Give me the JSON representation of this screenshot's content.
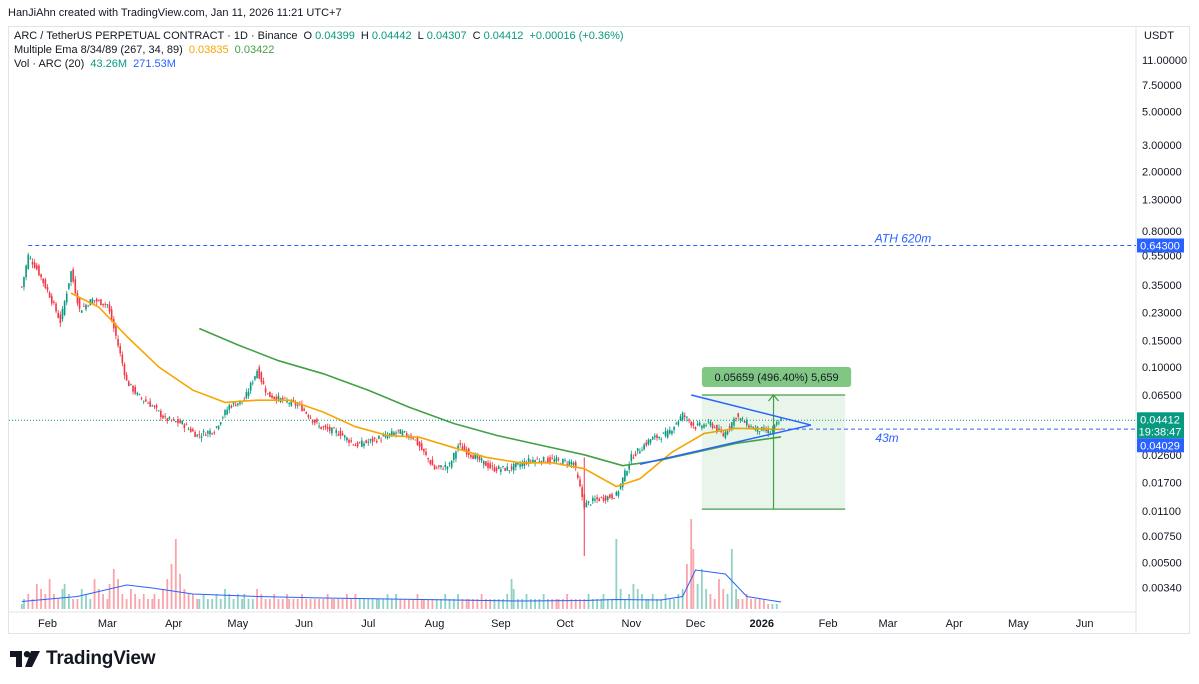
{
  "header": {
    "credit": "HanJiAhn created with TradingView.com, Jan 11, 2026 11:21 UTC+7"
  },
  "legend": {
    "symbol": "ARC / TetherUS PERPETUAL CONTRACT · 1D · Binance",
    "o_label": "O",
    "o": "0.04399",
    "h_label": "H",
    "h": "0.04442",
    "l_label": "L",
    "l": "0.04307",
    "c_label": "C",
    "c": "0.04412",
    "change": "+0.00016 (+0.36%)",
    "ema_label": "Multiple Ema 8/34/89 (267, 34, 89)",
    "ema_v1": "0.03835",
    "ema_v2": "0.03422",
    "vol_label": "Vol · ARC (20)",
    "vol_v1": "43.26M",
    "vol_v2": "271.53M"
  },
  "currency": "USDT",
  "footer": {
    "brand": "TradingView",
    "logo_icon": "tradingview-logo-icon"
  },
  "colors": {
    "up": "#089981",
    "down": "#f23645",
    "ema_fast": "#f7a600",
    "ema_slow": "#43a047",
    "triangle": "#2962ff",
    "measure": "#089981"
  },
  "chart_data": {
    "type": "candlestick",
    "scale": "log",
    "ylim": [
      0.0026,
      15
    ],
    "y_ticks": [
      "11.00000",
      "7.50000",
      "5.00000",
      "3.00000",
      "2.00000",
      "1.30000",
      "0.80000",
      "0.55000",
      "0.35000",
      "0.23000",
      "0.15000",
      "0.10000",
      "0.06500",
      "0.02600",
      "0.01700",
      "0.01100",
      "0.00750",
      "0.00500",
      "0.00340"
    ],
    "x_ticks": [
      "Feb",
      "Mar",
      "Apr",
      "May",
      "Jun",
      "Jul",
      "Aug",
      "Sep",
      "Oct",
      "Nov",
      "Dec",
      "2026",
      "Feb",
      "Mar",
      "Apr",
      "May",
      "Jun"
    ],
    "x_range": [
      "2025-01-14",
      "2026-06-25"
    ],
    "price_closes": [
      [
        "2025-01-20",
        0.34
      ],
      [
        "2025-01-23",
        0.55
      ],
      [
        "2025-01-27",
        0.45
      ],
      [
        "2025-02-02",
        0.3
      ],
      [
        "2025-02-07",
        0.2
      ],
      [
        "2025-02-12",
        0.43
      ],
      [
        "2025-02-16",
        0.24
      ],
      [
        "2025-02-22",
        0.28
      ],
      [
        "2025-03-01",
        0.26
      ],
      [
        "2025-03-05",
        0.16
      ],
      [
        "2025-03-10",
        0.08
      ],
      [
        "2025-03-15",
        0.065
      ],
      [
        "2025-03-22",
        0.055
      ],
      [
        "2025-03-28",
        0.045
      ],
      [
        "2025-04-05",
        0.042
      ],
      [
        "2025-04-12",
        0.035
      ],
      [
        "2025-04-20",
        0.038
      ],
      [
        "2025-04-27",
        0.055
      ],
      [
        "2025-05-04",
        0.06
      ],
      [
        "2025-05-10",
        0.095
      ],
      [
        "2025-05-15",
        0.065
      ],
      [
        "2025-05-22",
        0.06
      ],
      [
        "2025-05-30",
        0.055
      ],
      [
        "2025-06-08",
        0.04
      ],
      [
        "2025-06-18",
        0.036
      ],
      [
        "2025-06-25",
        0.03
      ],
      [
        "2025-07-05",
        0.033
      ],
      [
        "2025-07-15",
        0.037
      ],
      [
        "2025-07-22",
        0.034
      ],
      [
        "2025-08-01",
        0.021
      ],
      [
        "2025-08-08",
        0.022
      ],
      [
        "2025-08-12",
        0.03
      ],
      [
        "2025-08-20",
        0.025
      ],
      [
        "2025-08-28",
        0.021
      ],
      [
        "2025-09-05",
        0.021
      ],
      [
        "2025-09-15",
        0.024
      ],
      [
        "2025-09-25",
        0.024
      ],
      [
        "2025-10-05",
        0.023
      ],
      [
        "2025-10-10",
        0.012
      ],
      [
        "2025-10-15",
        0.013
      ],
      [
        "2025-10-25",
        0.014
      ],
      [
        "2025-11-01",
        0.025
      ],
      [
        "2025-11-10",
        0.033
      ],
      [
        "2025-11-18",
        0.036
      ],
      [
        "2025-11-25",
        0.048
      ],
      [
        "2025-12-01",
        0.04
      ],
      [
        "2025-12-08",
        0.042
      ],
      [
        "2025-12-14",
        0.035
      ],
      [
        "2025-12-20",
        0.047
      ],
      [
        "2025-12-28",
        0.039
      ],
      [
        "2026-01-05",
        0.037
      ],
      [
        "2026-01-10",
        0.04412
      ]
    ],
    "series": [
      {
        "name": "Multiple Ema 8/34/89 (267, 34, 89) 0.03835",
        "points": [
          [
            "2025-02-12",
            0.31
          ],
          [
            "2025-02-25",
            0.25
          ],
          [
            "2025-03-10",
            0.16
          ],
          [
            "2025-03-25",
            0.1
          ],
          [
            "2025-04-10",
            0.07
          ],
          [
            "2025-04-25",
            0.058
          ],
          [
            "2025-05-10",
            0.06
          ],
          [
            "2025-05-25",
            0.06
          ],
          [
            "2025-06-10",
            0.05
          ],
          [
            "2025-06-25",
            0.04
          ],
          [
            "2025-07-10",
            0.035
          ],
          [
            "2025-07-25",
            0.034
          ],
          [
            "2025-08-10",
            0.029
          ],
          [
            "2025-08-25",
            0.025
          ],
          [
            "2025-09-10",
            0.023
          ],
          [
            "2025-09-25",
            0.023
          ],
          [
            "2025-10-10",
            0.021
          ],
          [
            "2025-10-25",
            0.016
          ],
          [
            "2025-11-05",
            0.018
          ],
          [
            "2025-11-20",
            0.027
          ],
          [
            "2025-12-05",
            0.036
          ],
          [
            "2025-12-20",
            0.039
          ],
          [
            "2026-01-10",
            0.03835
          ]
        ]
      },
      {
        "name": "0.03422",
        "points": [
          [
            "2025-04-13",
            0.18
          ],
          [
            "2025-05-01",
            0.14
          ],
          [
            "2025-05-20",
            0.11
          ],
          [
            "2025-06-10",
            0.09
          ],
          [
            "2025-07-01",
            0.07
          ],
          [
            "2025-07-20",
            0.054
          ],
          [
            "2025-08-10",
            0.042
          ],
          [
            "2025-08-30",
            0.035
          ],
          [
            "2025-09-20",
            0.03
          ],
          [
            "2025-10-10",
            0.026
          ],
          [
            "2025-10-28",
            0.022
          ],
          [
            "2025-11-15",
            0.024
          ],
          [
            "2025-12-01",
            0.027
          ],
          [
            "2025-12-20",
            0.031
          ],
          [
            "2026-01-10",
            0.03422
          ]
        ]
      }
    ],
    "volume": [
      1,
      2,
      3,
      2,
      5,
      4,
      3,
      6,
      3,
      2,
      4,
      5,
      3,
      2,
      2,
      4,
      3,
      2,
      6,
      4,
      3,
      2,
      5,
      8,
      6,
      3,
      2,
      4,
      3,
      2,
      3,
      2,
      2,
      3,
      2,
      4,
      6,
      9,
      14,
      7,
      4,
      3,
      3,
      2,
      2,
      3,
      2,
      2,
      3,
      2,
      4,
      3,
      2,
      3,
      2,
      3,
      2,
      2,
      4,
      3,
      2,
      2,
      3,
      2,
      2,
      3,
      2,
      2,
      2,
      3,
      2,
      2,
      2,
      2,
      2,
      3,
      2,
      2,
      2,
      2,
      3,
      2,
      3,
      2,
      2,
      2,
      2,
      2,
      2,
      2,
      3,
      2,
      3,
      2,
      2,
      2,
      2,
      3,
      2,
      2,
      2,
      2,
      2,
      2,
      3,
      2,
      2,
      3,
      2,
      2,
      2,
      2,
      2,
      3,
      2,
      2,
      2,
      2,
      2,
      3,
      6,
      4,
      2,
      2,
      3,
      2,
      2,
      2,
      3,
      2,
      2,
      2,
      2,
      2,
      3,
      2,
      2,
      2,
      2,
      3,
      2,
      2,
      2,
      3,
      2,
      2,
      14,
      4,
      2,
      3,
      5,
      4,
      3,
      2,
      2,
      3,
      2,
      2,
      3,
      2,
      2,
      3,
      4,
      9,
      18,
      12,
      5,
      8,
      4,
      3,
      2,
      6,
      4,
      3,
      12,
      4,
      2,
      2,
      3,
      2,
      2,
      2,
      2,
      1,
      1,
      1
    ],
    "volume_ma": [
      [
        "2025-01-20",
        1.5
      ],
      [
        "2025-02-15",
        2.5
      ],
      [
        "2025-03-10",
        4.8
      ],
      [
        "2025-03-22",
        4.2
      ],
      [
        "2025-04-10",
        3.0
      ],
      [
        "2025-05-10",
        2.5
      ],
      [
        "2025-06-10",
        2.2
      ],
      [
        "2025-07-10",
        2.0
      ],
      [
        "2025-08-10",
        1.8
      ],
      [
        "2025-09-10",
        1.6
      ],
      [
        "2025-10-10",
        1.7
      ],
      [
        "2025-10-25",
        1.9
      ],
      [
        "2025-11-15",
        1.8
      ],
      [
        "2025-11-25",
        2.5
      ],
      [
        "2025-12-01",
        7.8
      ],
      [
        "2025-12-15",
        7.0
      ],
      [
        "2025-12-25",
        2.5
      ],
      [
        "2026-01-10",
        1.4
      ]
    ],
    "annotations": {
      "ath_price": "0.64300",
      "ath_label": "ATH 620m",
      "pattern_label": "43m",
      "measure_label": "0.05659 (496.40%) 5,659",
      "price_tag_last": "0.04412",
      "countdown": "19:38:47",
      "price_tag_level": "0.04029"
    }
  }
}
